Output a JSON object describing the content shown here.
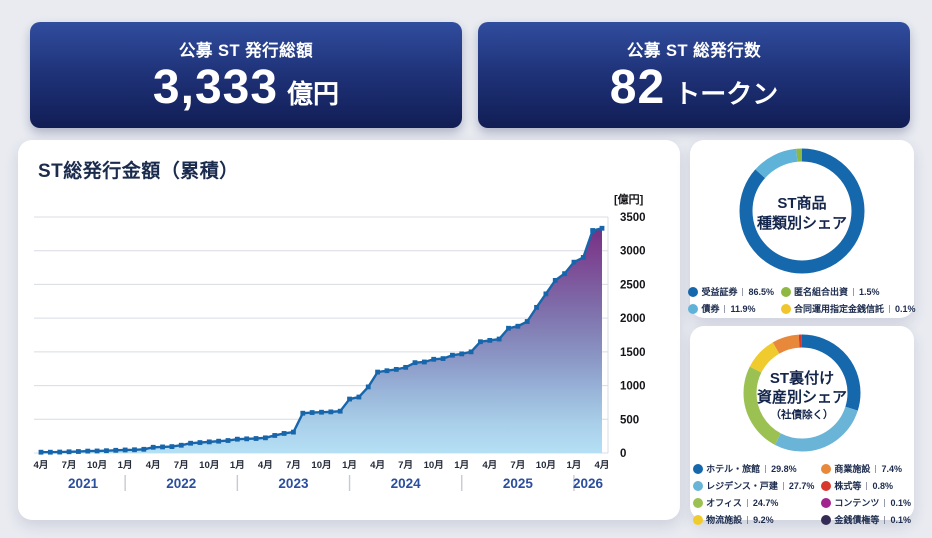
{
  "stats": [
    {
      "label": "公募 ST 発行総額",
      "value": "3,333",
      "unit": "億円"
    },
    {
      "label": "公募 ST 総発行数",
      "value": "82",
      "unit": "トークン"
    }
  ],
  "chart_data": [
    {
      "type": "area",
      "title": "ST総発行金額（累積）",
      "y_unit_label": "[億円]",
      "ylim": [
        0,
        3500
      ],
      "yticks": [
        0,
        500,
        1000,
        1500,
        2000,
        2500,
        3000,
        3500
      ],
      "grid": true,
      "x_months": [
        "2021-04",
        "2021-05",
        "2021-06",
        "2021-07",
        "2021-08",
        "2021-09",
        "2021-10",
        "2021-11",
        "2021-12",
        "2022-01",
        "2022-02",
        "2022-03",
        "2022-04",
        "2022-05",
        "2022-06",
        "2022-07",
        "2022-08",
        "2022-09",
        "2022-10",
        "2022-11",
        "2022-12",
        "2023-01",
        "2023-02",
        "2023-03",
        "2023-04",
        "2023-05",
        "2023-06",
        "2023-07",
        "2023-08",
        "2023-09",
        "2023-10",
        "2023-11",
        "2023-12",
        "2024-01",
        "2024-02",
        "2024-03",
        "2024-04",
        "2024-05",
        "2024-06",
        "2024-07",
        "2024-08",
        "2024-09",
        "2024-10",
        "2024-11",
        "2024-12",
        "2025-01",
        "2025-02",
        "2025-03",
        "2025-04",
        "2025-05",
        "2025-06",
        "2025-07",
        "2025-08",
        "2025-09",
        "2025-10",
        "2025-11",
        "2025-12",
        "2026-01",
        "2026-02",
        "2026-03",
        "2026-04"
      ],
      "values": [
        12,
        12,
        14,
        18,
        22,
        28,
        30,
        34,
        40,
        45,
        48,
        55,
        85,
        90,
        95,
        115,
        145,
        155,
        165,
        175,
        185,
        205,
        210,
        215,
        225,
        260,
        290,
        310,
        590,
        600,
        605,
        610,
        620,
        800,
        830,
        980,
        1200,
        1220,
        1240,
        1270,
        1340,
        1350,
        1390,
        1400,
        1450,
        1470,
        1500,
        1650,
        1670,
        1690,
        1850,
        1880,
        1950,
        2160,
        2360,
        2560,
        2660,
        2830,
        2900,
        3300,
        3333
      ],
      "x_tick_labels": [
        "4月",
        "7月",
        "10月",
        "1月",
        "4月",
        "7月",
        "10月",
        "1月",
        "4月",
        "7月",
        "10月",
        "1月",
        "4月",
        "7月",
        "10月",
        "1月",
        "4月",
        "7月",
        "10月",
        "1月",
        "4月"
      ],
      "x_tick_every_months": 3,
      "year_labels": [
        {
          "label": "2021",
          "center_index": 4.5
        },
        {
          "label": "2022",
          "center_index": 15
        },
        {
          "label": "2023",
          "center_index": 27
        },
        {
          "label": "2024",
          "center_index": 39
        },
        {
          "label": "2025",
          "center_index": 51
        },
        {
          "label": "2026",
          "center_index": 58.5
        }
      ],
      "year_separator_indices": [
        9,
        21,
        33,
        45,
        57
      ],
      "line_color": "#1766ab",
      "marker": "square",
      "gridline_color": "#d8dce3",
      "area_gradient": [
        "#6e2b7d",
        "#7b3d8d",
        "#7d549a",
        "#7e6ca9",
        "#8484b8",
        "#8d9cc9",
        "#9ab7da",
        "#a9cfe9",
        "#b5dff4"
      ]
    },
    {
      "type": "pie",
      "title_line1": "ST商品",
      "title_line2": "種類別シェア",
      "segments": [
        {
          "label": "受益証券",
          "value": "86.5%",
          "pct": 86.5,
          "color": "#1668ac"
        },
        {
          "label": "債券",
          "value": "11.9%",
          "pct": 11.9,
          "color": "#5fb3d9"
        },
        {
          "label": "匿名組合出資",
          "value": "1.5%",
          "pct": 1.5,
          "color": "#8fb843"
        },
        {
          "label": "合同運用指定金銭信託",
          "value": "0.1%",
          "pct": 0.1,
          "color": "#f0c62c"
        }
      ]
    },
    {
      "type": "pie",
      "title_line1": "ST裏付け",
      "title_line2": "資産別シェア",
      "title_line3": "（社債除く）",
      "segments": [
        {
          "label": "ホテル・旅館",
          "value": "29.8%",
          "pct": 29.8,
          "color": "#1668ac"
        },
        {
          "label": "レジデンス・戸建",
          "value": "27.7%",
          "pct": 27.7,
          "color": "#6ab4d8"
        },
        {
          "label": "オフィス",
          "value": "24.7%",
          "pct": 24.7,
          "color": "#9cc153"
        },
        {
          "label": "物流施設",
          "value": "9.2%",
          "pct": 9.2,
          "color": "#f0cb2e"
        },
        {
          "label": "商業施設",
          "value": "7.4%",
          "pct": 7.4,
          "color": "#e8883a"
        },
        {
          "label": "株式等",
          "value": "0.8%",
          "pct": 0.8,
          "color": "#d8372e"
        },
        {
          "label": "コンテンツ",
          "value": "0.1%",
          "pct": 0.1,
          "color": "#a2248e"
        },
        {
          "label": "金銭債権等",
          "value": "0.1%",
          "pct": 0.1,
          "color": "#352c55"
        }
      ]
    }
  ]
}
